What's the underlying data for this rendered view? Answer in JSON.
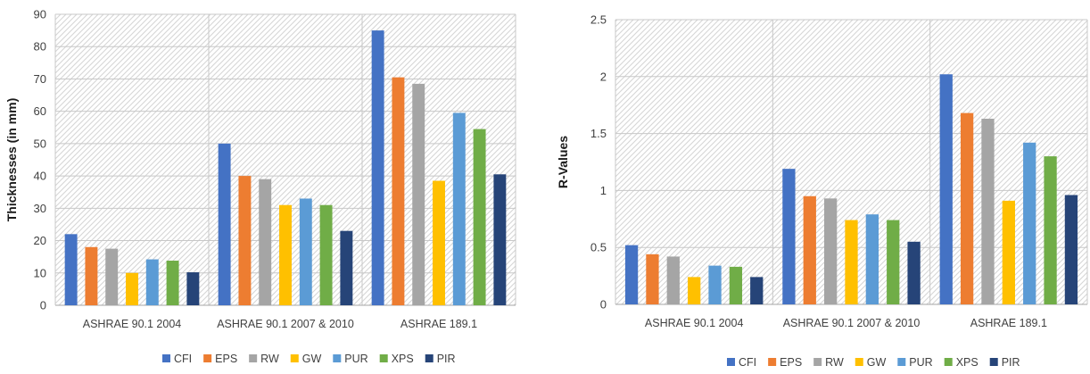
{
  "chart_data": [
    {
      "type": "bar",
      "title": "",
      "xlabel": "",
      "ylabel": "Thicknesses (in mm)",
      "ylim": [
        0,
        90
      ],
      "yticks": [
        0,
        10,
        20,
        30,
        40,
        50,
        60,
        70,
        80,
        90
      ],
      "grid": true,
      "legend": "bottom",
      "categories": [
        "ASHRAE 90.1 2004",
        "ASHRAE 90.1 2007 & 2010",
        "ASHRAE 189.1"
      ],
      "series": [
        {
          "name": "CFI",
          "color": "#4472C4",
          "values": [
            22,
            50,
            85
          ]
        },
        {
          "name": "EPS",
          "color": "#ED7D31",
          "values": [
            18,
            40,
            70.5
          ]
        },
        {
          "name": "RW",
          "color": "#A5A5A5",
          "values": [
            17.5,
            39,
            68.5
          ]
        },
        {
          "name": "GW",
          "color": "#FFC000",
          "values": [
            10,
            31,
            38.5
          ]
        },
        {
          "name": "PUR",
          "color": "#5B9BD5",
          "values": [
            14.2,
            33,
            59.5
          ]
        },
        {
          "name": "XPS",
          "color": "#70AD47",
          "values": [
            13.8,
            31,
            54.5
          ]
        },
        {
          "name": "PIR",
          "color": "#264478",
          "values": [
            10.2,
            23,
            40.5
          ]
        }
      ]
    },
    {
      "type": "bar",
      "title": "",
      "xlabel": "",
      "ylabel": "R-Values",
      "ylim": [
        0,
        2.5
      ],
      "yticks": [
        0,
        0.5,
        1,
        1.5,
        2,
        2.5
      ],
      "grid": true,
      "legend": "bottom",
      "categories": [
        "ASHRAE 90.1 2004",
        "ASHRAE 90.1 2007 & 2010",
        "ASHRAE 189.1"
      ],
      "series": [
        {
          "name": "CFI",
          "color": "#4472C4",
          "values": [
            0.52,
            1.19,
            2.02
          ]
        },
        {
          "name": "EPS",
          "color": "#ED7D31",
          "values": [
            0.44,
            0.95,
            1.68
          ]
        },
        {
          "name": "RW",
          "color": "#A5A5A5",
          "values": [
            0.42,
            0.93,
            1.63
          ]
        },
        {
          "name": "GW",
          "color": "#FFC000",
          "values": [
            0.24,
            0.74,
            0.91
          ]
        },
        {
          "name": "PUR",
          "color": "#5B9BD5",
          "values": [
            0.34,
            0.79,
            1.42
          ]
        },
        {
          "name": "XPS",
          "color": "#70AD47",
          "values": [
            0.33,
            0.74,
            1.3
          ]
        },
        {
          "name": "PIR",
          "color": "#264478",
          "values": [
            0.24,
            0.55,
            0.96
          ]
        }
      ]
    }
  ]
}
